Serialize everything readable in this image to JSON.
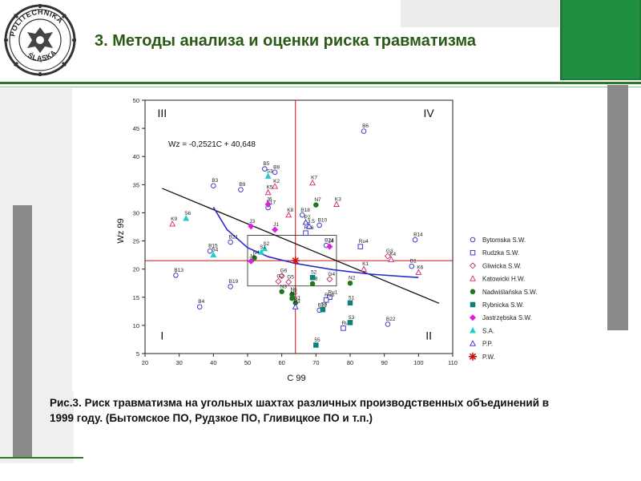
{
  "slide": {
    "title": "3.  Методы анализа и оценки риска травматизма",
    "caption": "Рис.3. Риск травматизма на угольных шахтах различных производственных объединений в 1999 году. (Бытомское ПО, Рудзкое ПО, Гливицкое ПО и т.п.)",
    "logo_text": "POLITECHNIKA ŚLĄSKA"
  },
  "colors": {
    "accent_green": "#208f3f",
    "title": "#2a5a16",
    "red": "#cc1111",
    "blue": "#2a2acc"
  },
  "chart_data": {
    "type": "scatter",
    "xlabel": "C 99",
    "ylabel": "Wz 99",
    "xlim": [
      20,
      110
    ],
    "ylim": [
      5,
      50
    ],
    "xticks": [
      20,
      30,
      40,
      50,
      60,
      70,
      80,
      90,
      100,
      110
    ],
    "yticks": [
      5,
      10,
      15,
      20,
      25,
      30,
      35,
      40,
      45,
      50
    ],
    "regression_label": "Wz = -0,2521C + 40,648",
    "regression": {
      "slope": -0.2521,
      "intercept": 40.648,
      "x_range": [
        25,
        106
      ]
    },
    "curve": [
      [
        40,
        31
      ],
      [
        44,
        27
      ],
      [
        50,
        23.8
      ],
      [
        56,
        22.2
      ],
      [
        64,
        21.0
      ],
      [
        75,
        19.9
      ],
      [
        86,
        19.1
      ],
      [
        100,
        18.5
      ]
    ],
    "mean_lines": {
      "x": 64,
      "y": 21.5
    },
    "box": {
      "x": [
        50,
        76
      ],
      "y": [
        17,
        26
      ]
    },
    "quadrants": [
      {
        "label": "III",
        "x": 25,
        "y": 47
      },
      {
        "label": "IV",
        "x": 103,
        "y": 47
      },
      {
        "label": "I",
        "x": 25,
        "y": 7.5
      },
      {
        "label": "II",
        "x": 103,
        "y": 7.5
      }
    ],
    "series": [
      {
        "name": "Bytomska S.W.",
        "marker": "circle",
        "color": "#2a2acc",
        "filled": false,
        "points": [
          {
            "x": 84,
            "y": 44.5,
            "label": "B6"
          },
          {
            "x": 55,
            "y": 37.8,
            "label": "B5"
          },
          {
            "x": 58,
            "y": 37.2,
            "label": "B8"
          },
          {
            "x": 40,
            "y": 34.8,
            "label": "B3"
          },
          {
            "x": 48,
            "y": 34.1,
            "label": "B9"
          },
          {
            "x": 56,
            "y": 30.9,
            "label": "B17"
          },
          {
            "x": 66,
            "y": 29.6,
            "label": "B18"
          },
          {
            "x": 71,
            "y": 27.8,
            "label": "B10"
          },
          {
            "x": 45,
            "y": 24.8,
            "label": "B21"
          },
          {
            "x": 39,
            "y": 23.2,
            "label": "B15"
          },
          {
            "x": 99,
            "y": 25.2,
            "label": "B14"
          },
          {
            "x": 98,
            "y": 20.5,
            "label": "B1"
          },
          {
            "x": 29,
            "y": 18.9,
            "label": "B13"
          },
          {
            "x": 45,
            "y": 16.9,
            "label": "B19"
          },
          {
            "x": 36,
            "y": 13.3,
            "label": "B4"
          },
          {
            "x": 91,
            "y": 10.2,
            "label": "B22"
          },
          {
            "x": 71,
            "y": 12.7,
            "label": "B12"
          },
          {
            "x": 73,
            "y": 24.2,
            "label": "B24"
          }
        ]
      },
      {
        "name": "Rudzka S.W.",
        "marker": "square",
        "color": "#2a2acc",
        "filled": false,
        "points": [
          {
            "x": 83,
            "y": 24.0,
            "label": "Ru4"
          },
          {
            "x": 67,
            "y": 26.4,
            "label": "Ru6"
          },
          {
            "x": 78,
            "y": 9.5,
            "label": "Ru5"
          },
          {
            "x": 74,
            "y": 15.0,
            "label": "Ru1"
          },
          {
            "x": 73,
            "y": 14.5,
            "label": "Ru3"
          }
        ]
      },
      {
        "name": "Gliwicka S.W.",
        "marker": "diamond",
        "color": "#cc2277",
        "filled": false,
        "points": [
          {
            "x": 60,
            "y": 18.8,
            "label": "G6"
          },
          {
            "x": 62,
            "y": 17.7,
            "label": "G5"
          },
          {
            "x": 91,
            "y": 22.3,
            "label": "G3"
          },
          {
            "x": 74,
            "y": 18.2,
            "label": "G4"
          },
          {
            "x": 59,
            "y": 17.8,
            "label": "G2"
          }
        ]
      },
      {
        "name": "Katowicki H.W.",
        "marker": "triangle",
        "color": "#cc2277",
        "filled": false,
        "points": [
          {
            "x": 28,
            "y": 28.0,
            "label": "K9"
          },
          {
            "x": 58,
            "y": 34.7,
            "label": "K2"
          },
          {
            "x": 56,
            "y": 33.6,
            "label": "K5"
          },
          {
            "x": 69,
            "y": 35.3,
            "label": "K7"
          },
          {
            "x": 76,
            "y": 31.5,
            "label": "K3"
          },
          {
            "x": 62,
            "y": 29.6,
            "label": "K8"
          },
          {
            "x": 92,
            "y": 21.7,
            "label": "K4"
          },
          {
            "x": 100,
            "y": 19.4,
            "label": "K6"
          },
          {
            "x": 84,
            "y": 20.0,
            "label": "K1"
          }
        ]
      },
      {
        "name": "Nadwiślańska S.W.",
        "marker": "circle",
        "color": "#1a7a1a",
        "filled": true,
        "points": [
          {
            "x": 70,
            "y": 31.4,
            "label": "N7"
          },
          {
            "x": 52,
            "y": 22.0,
            "label": "N4"
          },
          {
            "x": 80,
            "y": 17.5,
            "label": "N2"
          },
          {
            "x": 60,
            "y": 16.0,
            "label": "N3"
          },
          {
            "x": 63,
            "y": 15.5,
            "label": "N6"
          },
          {
            "x": 63,
            "y": 14.8,
            "label": "N5"
          },
          {
            "x": 69,
            "y": 17.4,
            "label": "N8"
          },
          {
            "x": 64,
            "y": 14.0,
            "label": "N1"
          }
        ]
      },
      {
        "name": "Rybnicka S.W.",
        "marker": "square",
        "color": "#0f7f7f",
        "filled": true,
        "points": [
          {
            "x": 70,
            "y": 6.5,
            "label": "55"
          },
          {
            "x": 80,
            "y": 10.5,
            "label": "53"
          },
          {
            "x": 80,
            "y": 14.0,
            "label": "51"
          },
          {
            "x": 69,
            "y": 18.5,
            "label": "52"
          },
          {
            "x": 72,
            "y": 12.8,
            "label": "54"
          }
        ]
      },
      {
        "name": "Jastrzębska S.W.",
        "marker": "diamond",
        "color": "#dd22dd",
        "filled": true,
        "points": [
          {
            "x": 56,
            "y": 31.5,
            "label": "J6"
          },
          {
            "x": 58,
            "y": 27.0,
            "label": "J1"
          },
          {
            "x": 51,
            "y": 27.6,
            "label": "J3"
          },
          {
            "x": 51,
            "y": 21.4,
            "label": "J4"
          },
          {
            "x": 74,
            "y": 24.0,
            "label": "J4"
          }
        ]
      },
      {
        "name": "S.A.",
        "marker": "triangle",
        "color": "#22cccc",
        "filled": true,
        "points": [
          {
            "x": 32,
            "y": 29.0,
            "label": "S6"
          },
          {
            "x": 40,
            "y": 22.5,
            "label": "S4"
          },
          {
            "x": 55,
            "y": 23.6,
            "label": "S2"
          },
          {
            "x": 56,
            "y": 36.5,
            "label": "S3"
          },
          {
            "x": 54,
            "y": 23.0,
            "label": "S1"
          }
        ]
      },
      {
        "name": "P.P.",
        "marker": "triangle",
        "color": "#2a2acc",
        "filled": false,
        "points": [
          {
            "x": 67,
            "y": 28.3,
            "label": "P2"
          },
          {
            "x": 68,
            "y": 27.6,
            "label": "3.5"
          },
          {
            "x": 64,
            "y": 13.3,
            "label": "P3"
          }
        ]
      },
      {
        "name": "P.W.",
        "marker": "star",
        "color": "#cc1111",
        "filled": true,
        "points": [
          {
            "x": 64,
            "y": 21.5,
            "label": "PW"
          }
        ]
      }
    ]
  }
}
